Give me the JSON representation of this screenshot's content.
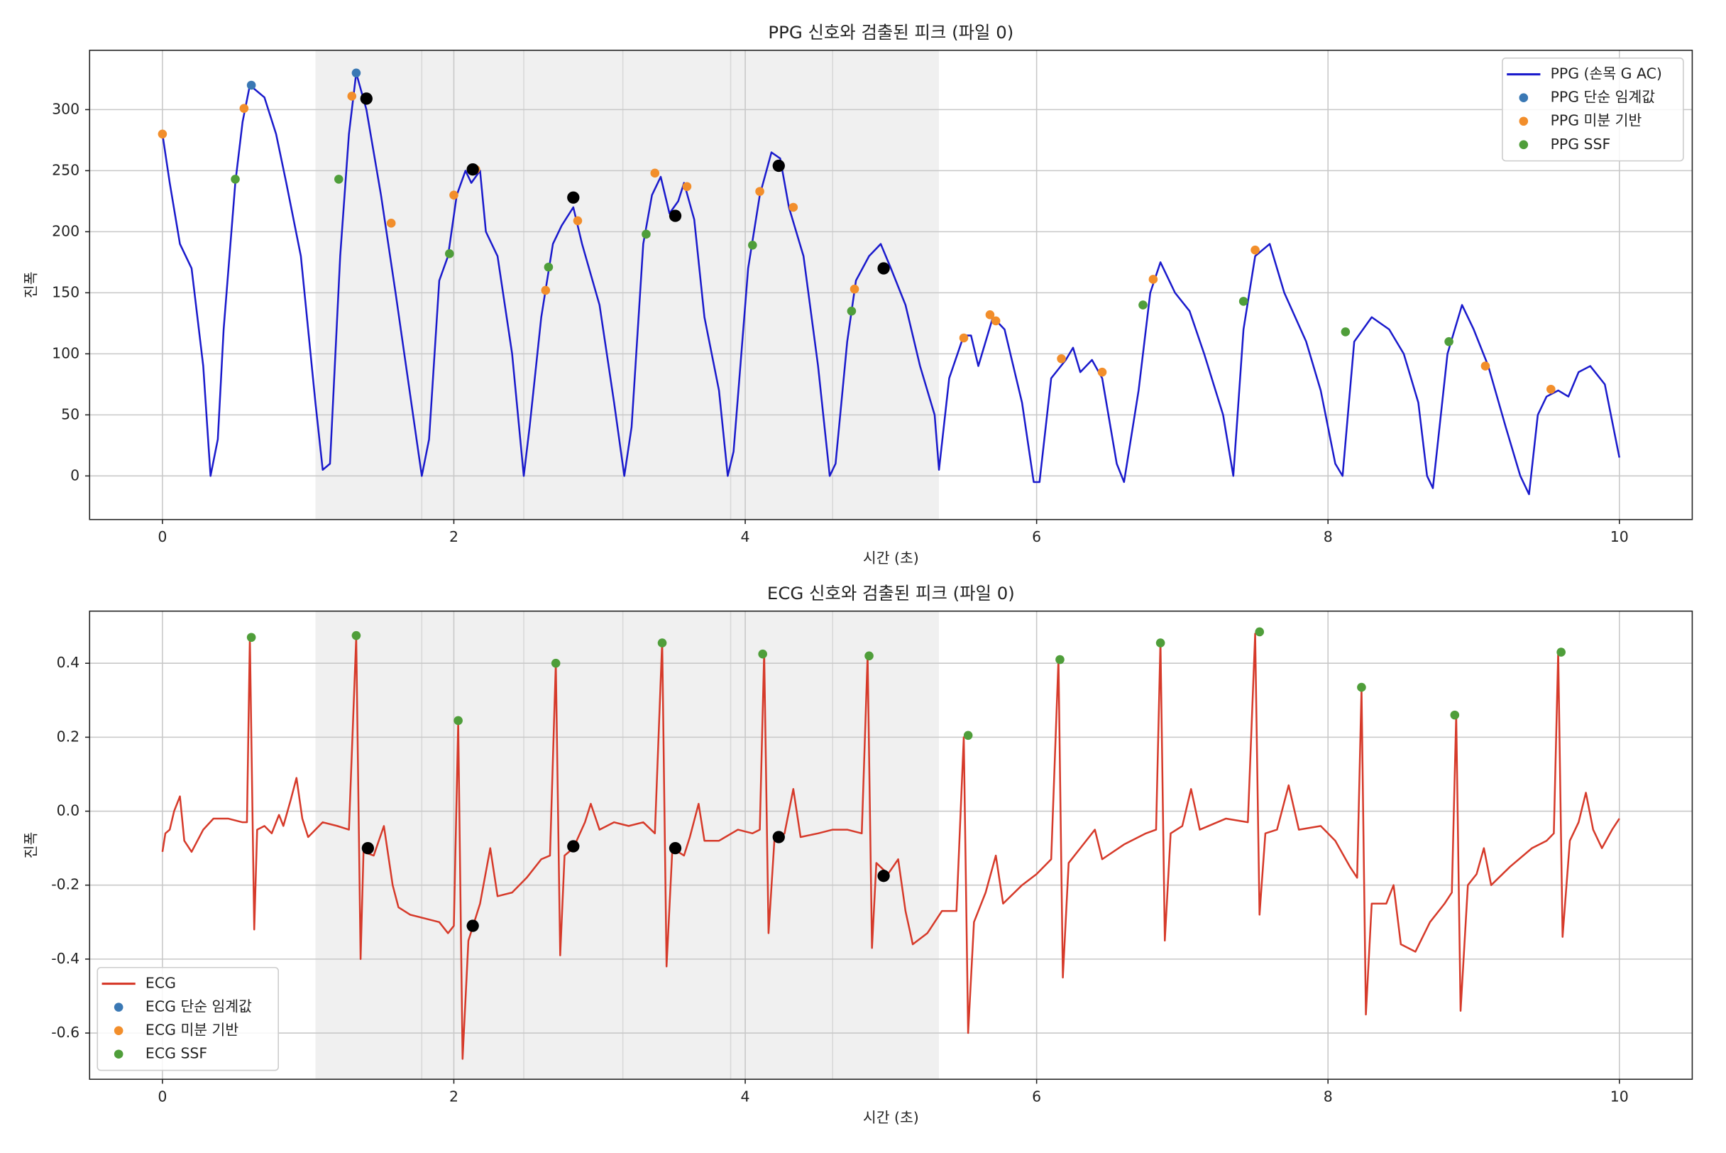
{
  "chart_data": [
    {
      "type": "line",
      "title": "PPG 신호와 검출된 피크 (파일 0)",
      "x_label": "시간 (초)",
      "y_label": "진폭",
      "xlim": [
        -0.5,
        10.5
      ],
      "ylim": [
        -35.7,
        348.6
      ],
      "xticks": [
        0,
        2,
        4,
        6,
        8,
        10
      ],
      "yticks": [
        0,
        50,
        100,
        150,
        200,
        250,
        300
      ],
      "grid": true,
      "legend": "upper right",
      "highlight_span": [
        1.05,
        5.33
      ],
      "span_color": "#f0f0f0",
      "vlines": [
        1.78,
        2.48,
        3.16,
        3.9,
        4.6
      ],
      "series": [
        {
          "name": "PPG (손목 G AC)",
          "type": "line",
          "color": "#1a1acc",
          "x": [
            0,
            0.05,
            0.12,
            0.2,
            0.28,
            0.33,
            0.38,
            0.42,
            0.5,
            0.55,
            0.6,
            0.7,
            0.78,
            0.85,
            0.95,
            1.05,
            1.1,
            1.15,
            1.22,
            1.28,
            1.33,
            1.4,
            1.5,
            1.6,
            1.72,
            1.78,
            1.83,
            1.9,
            1.96,
            2.02,
            2.08,
            2.12,
            2.18,
            2.22,
            2.3,
            2.4,
            2.48,
            2.52,
            2.6,
            2.68,
            2.74,
            2.82,
            2.88,
            3.0,
            3.1,
            3.17,
            3.22,
            3.3,
            3.36,
            3.42,
            3.48,
            3.54,
            3.58,
            3.65,
            3.72,
            3.82,
            3.88,
            3.92,
            4.02,
            4.1,
            4.18,
            4.24,
            4.3,
            4.4,
            4.5,
            4.58,
            4.62,
            4.7,
            4.76,
            4.85,
            4.93,
            5.0,
            5.1,
            5.2,
            5.3,
            5.33,
            5.4,
            5.5,
            5.55,
            5.6,
            5.7,
            5.78,
            5.9,
            5.98,
            6.02,
            6.1,
            6.2,
            6.25,
            6.3,
            6.38,
            6.45,
            6.55,
            6.6,
            6.7,
            6.78,
            6.85,
            6.95,
            7.05,
            7.15,
            7.28,
            7.35,
            7.42,
            7.5,
            7.6,
            7.7,
            7.85,
            7.95,
            8.05,
            8.1,
            8.18,
            8.3,
            8.42,
            8.52,
            8.62,
            8.68,
            8.72,
            8.82,
            8.92,
            9.0,
            9.1,
            9.22,
            9.32,
            9.38,
            9.44,
            9.5,
            9.58,
            9.65,
            9.72,
            9.8,
            9.9,
            9.95,
            10
          ],
          "values": [
            280,
            240,
            190,
            170,
            90,
            0,
            30,
            120,
            240,
            290,
            320,
            310,
            280,
            240,
            180,
            60,
            5,
            10,
            180,
            280,
            330,
            300,
            230,
            150,
            50,
            0,
            30,
            160,
            180,
            230,
            250,
            240,
            250,
            200,
            180,
            100,
            0,
            40,
            130,
            190,
            205,
            220,
            190,
            140,
            60,
            0,
            40,
            190,
            230,
            245,
            215,
            225,
            240,
            210,
            130,
            70,
            0,
            20,
            170,
            230,
            265,
            260,
            220,
            180,
            90,
            0,
            10,
            110,
            160,
            180,
            190,
            170,
            140,
            90,
            50,
            5,
            80,
            115,
            115,
            90,
            130,
            120,
            60,
            -5,
            -5,
            80,
            95,
            105,
            85,
            95,
            80,
            10,
            -5,
            70,
            150,
            175,
            150,
            135,
            100,
            50,
            0,
            120,
            180,
            190,
            150,
            110,
            70,
            10,
            0,
            110,
            130,
            120,
            100,
            60,
            0,
            -10,
            100,
            140,
            120,
            90,
            40,
            0,
            -15,
            50,
            65,
            70,
            65,
            85,
            90,
            75,
            45,
            15
          ]
        },
        {
          "name": "PPG 단순 임계값",
          "type": "scatter",
          "color": "#3a78b4",
          "marker_size": 4,
          "x": [
            0.61,
            1.33
          ],
          "values": [
            320,
            330
          ]
        },
        {
          "name": "PPG 미분 기반",
          "type": "scatter",
          "color": "#f28e2b",
          "marker_size": 4,
          "x": [
            0,
            0.56,
            1.3,
            1.57,
            2.0,
            2.15,
            2.63,
            2.85,
            3.38,
            3.6,
            4.1,
            4.33,
            4.75,
            5.5,
            5.68,
            5.72,
            6.17,
            6.45,
            6.8,
            7.5,
            9.08,
            9.53
          ],
          "values": [
            280,
            301,
            311,
            207,
            230,
            251,
            152,
            209,
            248,
            237,
            233,
            220,
            153,
            113,
            132,
            127,
            96,
            85,
            161,
            185,
            90,
            71
          ]
        },
        {
          "name": "PPG SSF",
          "type": "scatter",
          "color": "#4f9e3a",
          "marker_size": 4,
          "x": [
            0.5,
            1.21,
            1.97,
            2.65,
            3.32,
            4.05,
            4.73,
            6.73,
            7.42,
            8.12,
            8.83
          ],
          "values": [
            243,
            243,
            182,
            171,
            198,
            189,
            135,
            140,
            143,
            118,
            110
          ]
        },
        {
          "type": "scatter",
          "color": "#000000",
          "marker_size": 5.5,
          "x": [
            1.4,
            2.13,
            2.82,
            3.52,
            4.23,
            4.95
          ],
          "values": [
            309,
            251,
            228,
            213,
            254,
            170
          ]
        }
      ]
    },
    {
      "type": "line",
      "title": "ECG 신호와 검출된 피크 (파일 0)",
      "x_label": "시간 (초)",
      "y_label": "진폭",
      "xlim": [
        -0.5,
        10.5
      ],
      "ylim": [
        -0.725,
        0.541
      ],
      "xticks": [
        0,
        2,
        4,
        6,
        8,
        10
      ],
      "yticks": [
        -0.6,
        -0.4,
        -0.2,
        {
          "value": 0,
          "label": "0.0"
        },
        0.2,
        0.4
      ],
      "grid": true,
      "legend": "lower left",
      "highlight_span": [
        1.05,
        5.33
      ],
      "span_color": "#f0f0f0",
      "vlines": [
        1.78,
        2.48,
        3.16,
        3.9,
        4.6
      ],
      "series": [
        {
          "name": "ECG",
          "type": "line",
          "color": "#d63a2a",
          "x": [
            0,
            0.02,
            0.05,
            0.08,
            0.12,
            0.15,
            0.2,
            0.28,
            0.35,
            0.45,
            0.55,
            0.58,
            0.6,
            0.63,
            0.65,
            0.7,
            0.75,
            0.8,
            0.83,
            0.88,
            0.92,
            0.96,
            1.0,
            1.1,
            1.2,
            1.28,
            1.33,
            1.36,
            1.38,
            1.45,
            1.52,
            1.58,
            1.62,
            1.7,
            1.8,
            1.9,
            1.96,
            2.0,
            2.03,
            2.06,
            2.1,
            2.18,
            2.25,
            2.3,
            2.4,
            2.5,
            2.6,
            2.66,
            2.7,
            2.73,
            2.76,
            2.82,
            2.9,
            2.94,
            3.0,
            3.1,
            3.2,
            3.3,
            3.38,
            3.43,
            3.46,
            3.5,
            3.58,
            3.62,
            3.68,
            3.72,
            3.82,
            3.95,
            4.05,
            4.1,
            4.13,
            4.16,
            4.2,
            4.27,
            4.33,
            4.38,
            4.5,
            4.6,
            4.7,
            4.8,
            4.84,
            4.87,
            4.9,
            4.98,
            5.05,
            5.1,
            5.15,
            5.25,
            5.35,
            5.45,
            5.5,
            5.53,
            5.57,
            5.65,
            5.72,
            5.77,
            5.9,
            6.0,
            6.1,
            6.15,
            6.18,
            6.22,
            6.3,
            6.4,
            6.45,
            6.6,
            6.75,
            6.82,
            6.85,
            6.88,
            6.92,
            7.0,
            7.06,
            7.12,
            7.3,
            7.45,
            7.5,
            7.53,
            7.57,
            7.65,
            7.73,
            7.8,
            7.95,
            8.05,
            8.15,
            8.2,
            8.23,
            8.26,
            8.3,
            8.4,
            8.45,
            8.5,
            8.6,
            8.7,
            8.8,
            8.85,
            8.88,
            8.91,
            8.96,
            9.02,
            9.07,
            9.12,
            9.25,
            9.4,
            9.5,
            9.55,
            9.58,
            9.61,
            9.66,
            9.72,
            9.77,
            9.82,
            9.88,
            9.95,
            10
          ],
          "values": [
            -0.11,
            -0.06,
            -0.05,
            0.0,
            0.04,
            -0.08,
            -0.11,
            -0.05,
            -0.02,
            -0.02,
            -0.03,
            -0.03,
            0.47,
            -0.32,
            -0.05,
            -0.04,
            -0.06,
            -0.01,
            -0.04,
            0.03,
            0.09,
            -0.02,
            -0.07,
            -0.03,
            -0.04,
            -0.05,
            0.47,
            -0.4,
            -0.11,
            -0.12,
            -0.04,
            -0.2,
            -0.26,
            -0.28,
            -0.29,
            -0.3,
            -0.33,
            -0.31,
            0.24,
            -0.67,
            -0.35,
            -0.25,
            -0.1,
            -0.23,
            -0.22,
            -0.18,
            -0.13,
            -0.12,
            0.4,
            -0.39,
            -0.12,
            -0.1,
            -0.03,
            0.02,
            -0.05,
            -0.03,
            -0.04,
            -0.03,
            -0.06,
            0.46,
            -0.42,
            -0.1,
            -0.12,
            -0.07,
            0.02,
            -0.08,
            -0.08,
            -0.05,
            -0.06,
            -0.05,
            0.43,
            -0.33,
            -0.08,
            -0.06,
            0.06,
            -0.07,
            -0.06,
            -0.05,
            -0.05,
            -0.06,
            0.42,
            -0.37,
            -0.14,
            -0.17,
            -0.13,
            -0.27,
            -0.36,
            -0.33,
            -0.27,
            -0.27,
            0.2,
            -0.6,
            -0.3,
            -0.22,
            -0.12,
            -0.25,
            -0.2,
            -0.17,
            -0.13,
            0.41,
            -0.45,
            -0.14,
            -0.1,
            -0.05,
            -0.13,
            -0.09,
            -0.06,
            -0.05,
            0.46,
            -0.35,
            -0.06,
            -0.04,
            0.06,
            -0.05,
            -0.02,
            -0.03,
            0.48,
            -0.28,
            -0.06,
            -0.05,
            0.07,
            -0.05,
            -0.04,
            -0.08,
            -0.15,
            -0.18,
            0.33,
            -0.55,
            -0.25,
            -0.25,
            -0.2,
            -0.36,
            -0.38,
            -0.3,
            -0.25,
            -0.22,
            0.26,
            -0.54,
            -0.2,
            -0.17,
            -0.1,
            -0.2,
            -0.15,
            -0.1,
            -0.08,
            -0.06,
            0.43,
            -0.34,
            -0.08,
            -0.03,
            0.05,
            -0.05,
            -0.1,
            -0.05,
            -0.02
          ]
        },
        {
          "name": "ECG 단순 임계값",
          "type": "scatter",
          "color": "#3a78b4",
          "marker_size": 4,
          "x": [],
          "values": []
        },
        {
          "name": "ECG 미분 기반",
          "type": "scatter",
          "color": "#f28e2b",
          "marker_size": 4,
          "x": [],
          "values": []
        },
        {
          "name": "ECG SSF",
          "type": "scatter",
          "color": "#4f9e3a",
          "marker_size": 4,
          "x": [
            0.61,
            1.33,
            2.03,
            2.7,
            3.43,
            4.12,
            4.85,
            5.53,
            6.16,
            6.85,
            7.53,
            8.23,
            8.87,
            9.6
          ],
          "values": [
            0.47,
            0.475,
            0.245,
            0.4,
            0.455,
            0.425,
            0.42,
            0.205,
            0.41,
            0.455,
            0.485,
            0.335,
            0.26,
            0.43
          ]
        },
        {
          "type": "scatter",
          "color": "#000000",
          "marker_size": 5.5,
          "x": [
            1.41,
            2.13,
            2.82,
            3.52,
            4.23,
            4.95
          ],
          "values": [
            -0.1,
            -0.31,
            -0.095,
            -0.1,
            -0.07,
            -0.175
          ]
        }
      ]
    }
  ]
}
